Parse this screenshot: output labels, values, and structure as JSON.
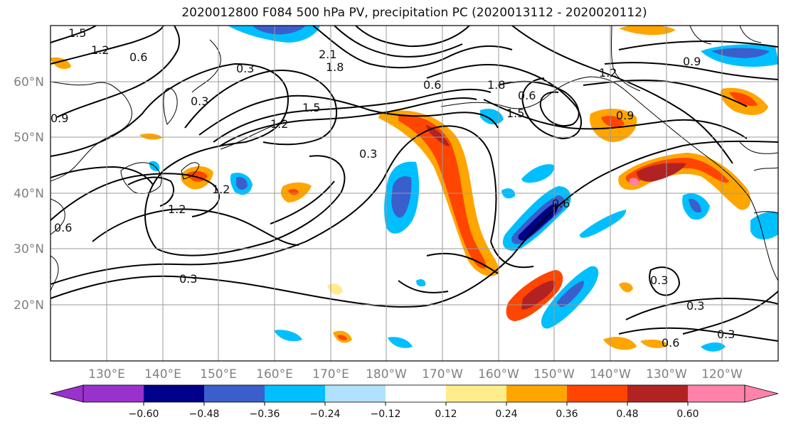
{
  "title": "2020012800 F084 500 hPa PV, precipitation PC (2020013112 - 2020020112)",
  "axes": {
    "lat_labels": [
      "60°N",
      "50°N",
      "40°N",
      "30°N",
      "20°N"
    ],
    "lon_labels": [
      "130°E",
      "140°E",
      "150°E",
      "160°E",
      "170°E",
      "180°W",
      "170°W",
      "160°W",
      "150°W",
      "140°W",
      "130°W",
      "120°W"
    ]
  },
  "colorbar": {
    "tick_labels": [
      "−0.60",
      "−0.48",
      "−0.36",
      "−0.24",
      "−0.12",
      "0.12",
      "0.24",
      "0.36",
      "0.48",
      "0.60"
    ],
    "colors": [
      "#9932cc",
      "#00008b",
      "#3a5fcd",
      "#00bfff",
      "#b0e2ff",
      "#ffffff",
      "#ffec8b",
      "#ffa500",
      "#ff4500",
      "#b22222",
      "#ff82ab"
    ]
  },
  "contour_labels": [
    "1.5",
    "1.2",
    "0.6",
    "0.3",
    "0.3",
    "2.1",
    "1.8",
    "1.5",
    "1.2",
    "0.6",
    "1.8",
    "1.5",
    "1.2",
    "0.9",
    "0.9",
    "0.3",
    "0.6",
    "1.2",
    "1.2",
    "0.6",
    "0.3",
    "0.3",
    "0.3",
    "0.6",
    "0.3",
    "0.9",
    "0.6"
  ]
}
